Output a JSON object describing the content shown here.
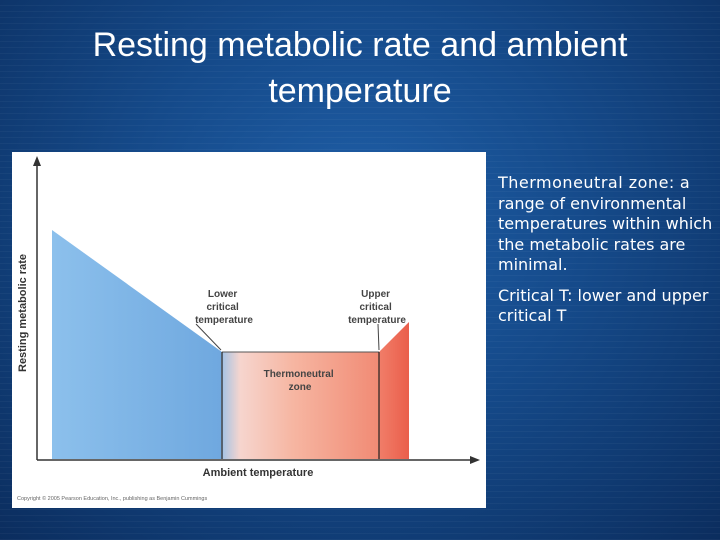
{
  "title": "Resting metabolic rate and ambient temperature",
  "figure": {
    "y_axis_label": "Resting metabolic rate",
    "x_axis_label": "Ambient temperature",
    "lower_critical_label": [
      "Lower",
      "critical",
      "temperature"
    ],
    "upper_critical_label": [
      "Upper",
      "critical",
      "temperature"
    ],
    "zone_label": [
      "Thermoneutral",
      "zone"
    ],
    "copyright": "Copyright © 2005 Pearson Education, Inc., publishing as Benjamin Cummings",
    "colors": {
      "cold": "#7fb6e6",
      "neutral_left": "#f9d2c6",
      "hot": "#ee6a57",
      "axis": "#333333"
    }
  },
  "text_panel": {
    "bullet1_term": "Thermoneutral zone:",
    "bullet1_body": "a range of environmental temperatures within which the metabolic rates are minimal.",
    "bullet2": "Critical T: lower and upper critical T"
  }
}
